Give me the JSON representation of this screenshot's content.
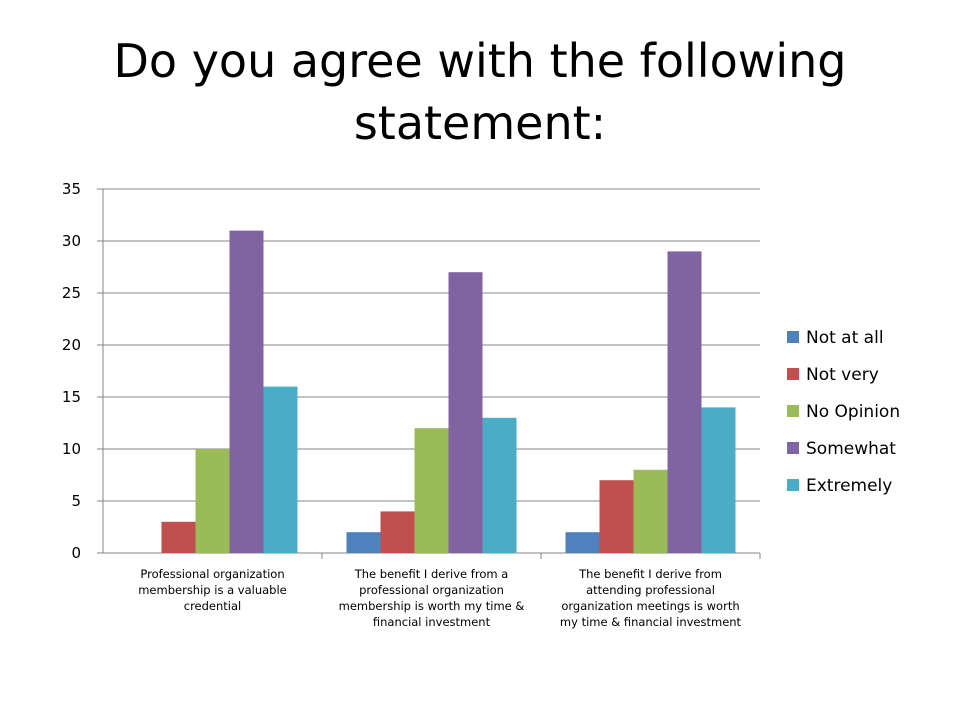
{
  "slide": {
    "title_line1": "Do you agree with the following",
    "title_line2": "statement:"
  },
  "chart_data": {
    "type": "bar",
    "categories": [
      [
        "Professional organization",
        "membership is a valuable",
        "credential"
      ],
      [
        "The benefit I derive from a",
        "professional organization",
        "membership is worth my time &",
        "financial investment"
      ],
      [
        "The benefit I derive from",
        "attending professional",
        "organization meetings is worth",
        "my time & financial investment"
      ]
    ],
    "series": [
      {
        "name": "Not at all",
        "color": "#4F81BD",
        "values": [
          0,
          2,
          2
        ]
      },
      {
        "name": "Not very",
        "color": "#C0504D",
        "values": [
          3,
          4,
          7
        ]
      },
      {
        "name": "No Opinion",
        "color": "#9BBB59",
        "values": [
          10,
          12,
          8
        ]
      },
      {
        "name": "Somewhat",
        "color": "#8064A2",
        "values": [
          31,
          27,
          29
        ]
      },
      {
        "name": "Extremely",
        "color": "#4BACC6",
        "values": [
          16,
          13,
          14
        ]
      }
    ],
    "ylim": [
      0,
      35
    ],
    "yticks": [
      0,
      5,
      10,
      15,
      20,
      25,
      30,
      35
    ],
    "grid": true,
    "legend": "right"
  }
}
